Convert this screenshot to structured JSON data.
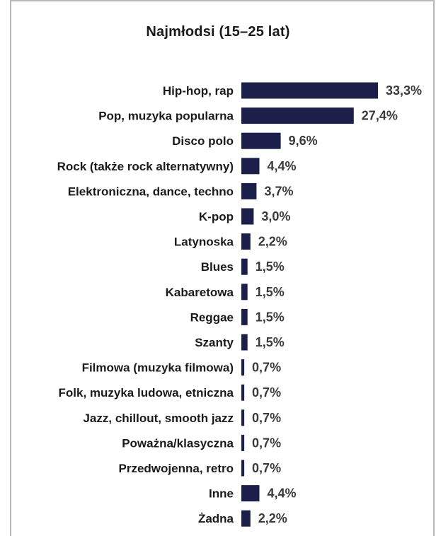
{
  "chart_data": {
    "type": "bar",
    "orientation": "horizontal",
    "title": "Najmłodsi (15–25 lat)",
    "categories": [
      "Hip-hop, rap",
      "Pop, muzyka popularna",
      "Disco polo",
      "Rock (także rock alternatywny)",
      "Elektroniczna, dance, techno",
      "K-pop",
      "Latynoska",
      "Blues",
      "Kabaretowa",
      "Reggae",
      "Szanty",
      "Filmowa (muzyka filmowa)",
      "Folk, muzyka ludowa, etniczna",
      "Jazz, chillout, smooth jazz",
      "Poważna/klasyczna",
      "Przedwojenna, retro",
      "Inne",
      "Żadna"
    ],
    "values": [
      33.3,
      27.4,
      9.6,
      4.4,
      3.7,
      3.0,
      2.2,
      1.5,
      1.5,
      1.5,
      1.5,
      0.7,
      0.7,
      0.7,
      0.7,
      0.7,
      4.4,
      2.2
    ],
    "value_labels": [
      "33,3%",
      "27,4%",
      "9,6%",
      "4,4%",
      "3,7%",
      "3,0%",
      "2,2%",
      "1,5%",
      "1,5%",
      "1,5%",
      "1,5%",
      "0,7%",
      "0,7%",
      "0,7%",
      "0,7%",
      "0,7%",
      "4,4%",
      "2,2%"
    ],
    "xlim": [
      0,
      33.3
    ],
    "grid": false,
    "legend": "none",
    "bar_color": "#1b1f4a"
  }
}
